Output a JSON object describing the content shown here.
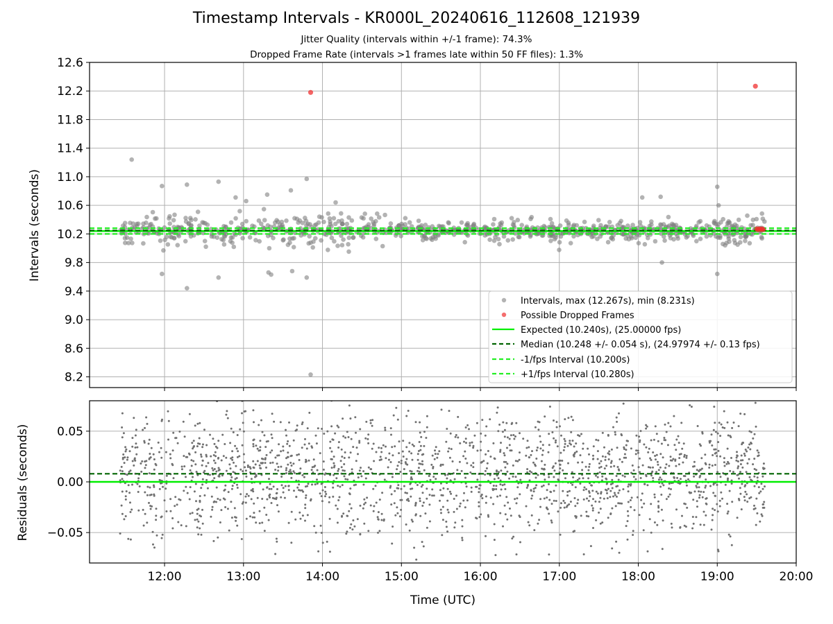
{
  "title": "Timestamp Intervals - KR000L_20240616_112608_121939",
  "subtitle1": "Jitter Quality (intervals within +/-1 frame): 74.3%",
  "subtitle2": "Dropped Frame Rate (intervals >1 frames late within 50 FF files): 1.3%",
  "colors": {
    "intervals": "#808080",
    "dropped": "#f03030",
    "expected": "#00ee00",
    "median": "#006400",
    "interval_band": "#22ee22",
    "grid": "#b0b0b0"
  },
  "chart_data": [
    {
      "type": "scatter",
      "title": "",
      "xlabel": "",
      "ylabel": "Intervals (seconds)",
      "xlim_hours": [
        11.05,
        20.0
      ],
      "ylim": [
        8.05,
        12.6
      ],
      "yticks": [
        "8.2",
        "8.6",
        "9.0",
        "9.4",
        "9.8",
        "10.2",
        "10.6",
        "11.0",
        "11.4",
        "11.8",
        "12.2",
        "12.6"
      ],
      "xticks": [
        "12:00",
        "13:00",
        "14:00",
        "15:00",
        "16:00",
        "17:00",
        "18:00",
        "19:00",
        "20:00"
      ],
      "grid": true,
      "legend_position": "lower-right",
      "series": [
        {
          "name": "Intervals, max (12.267s), min (8.231s)",
          "kind": "scatter",
          "x_range_hours": [
            11.43,
            19.6
          ],
          "center": 10.248,
          "spread": 0.1,
          "n_points": 900,
          "outliers": [
            {
              "x": "11:35",
              "y": 11.24
            },
            {
              "x": "11:58",
              "y": 10.87
            },
            {
              "x": "11:58",
              "y": 9.64
            },
            {
              "x": "12:17",
              "y": 10.89
            },
            {
              "x": "12:17",
              "y": 9.44
            },
            {
              "x": "12:41",
              "y": 10.93
            },
            {
              "x": "12:41",
              "y": 9.59
            },
            {
              "x": "12:54",
              "y": 10.71
            },
            {
              "x": "13:02",
              "y": 10.66
            },
            {
              "x": "13:18",
              "y": 10.75
            },
            {
              "x": "13:19",
              "y": 9.66
            },
            {
              "x": "13:21",
              "y": 9.63
            },
            {
              "x": "13:36",
              "y": 10.81
            },
            {
              "x": "13:37",
              "y": 9.68
            },
            {
              "x": "13:48",
              "y": 10.97
            },
            {
              "x": "13:48",
              "y": 9.59
            },
            {
              "x": "13:51",
              "y": 8.231
            },
            {
              "x": "14:10",
              "y": 10.64
            },
            {
              "x": "18:03",
              "y": 10.71
            },
            {
              "x": "18:17",
              "y": 10.72
            },
            {
              "x": "18:18",
              "y": 9.8
            },
            {
              "x": "19:00",
              "y": 10.86
            },
            {
              "x": "19:00",
              "y": 9.64
            },
            {
              "x": "19:01",
              "y": 10.6
            }
          ]
        },
        {
          "name": "Possible Dropped Frames",
          "kind": "scatter",
          "points": [
            {
              "x": "13:51",
              "y": 12.18
            },
            {
              "x": "19:29",
              "y": 12.267
            },
            {
              "x": "19:30",
              "y": 10.27
            },
            {
              "x": "19:31",
              "y": 10.26
            },
            {
              "x": "19:32",
              "y": 10.27
            },
            {
              "x": "19:33",
              "y": 10.26
            },
            {
              "x": "19:34",
              "y": 10.27
            },
            {
              "x": "19:35",
              "y": 10.26
            }
          ]
        },
        {
          "name": "Expected (10.240s), (25.00000 fps)",
          "kind": "hline",
          "y": 10.24
        },
        {
          "name": "Median (10.248 +/- 0.054 s), (24.97974 +/- 0.13 fps)",
          "kind": "hline",
          "y": 10.248
        },
        {
          "name": "-1/fps Interval (10.200s)",
          "kind": "hline",
          "y": 10.2
        },
        {
          "name": "+1/fps Interval (10.280s)",
          "kind": "hline",
          "y": 10.28
        }
      ]
    },
    {
      "type": "scatter",
      "title": "",
      "xlabel": "Time (UTC)",
      "ylabel": "Residuals (seconds)",
      "xlim_hours": [
        11.05,
        20.0
      ],
      "ylim": [
        -0.08,
        0.08
      ],
      "yticks": [
        "−0.05",
        "0.00",
        "0.05"
      ],
      "ytick_values": [
        -0.05,
        0.0,
        0.05
      ],
      "xticks": [
        "12:00",
        "13:00",
        "14:00",
        "15:00",
        "16:00",
        "17:00",
        "18:00",
        "19:00",
        "20:00"
      ],
      "grid": true,
      "series": [
        {
          "name": "Residuals",
          "kind": "scatter",
          "x_range_hours": [
            11.43,
            19.6
          ],
          "center": 0.008,
          "spread": 0.03,
          "n_points": 2000
        },
        {
          "name": "Expected",
          "kind": "hline",
          "y": 0.0
        },
        {
          "name": "Median",
          "kind": "hline",
          "y": 0.008
        }
      ]
    }
  ]
}
